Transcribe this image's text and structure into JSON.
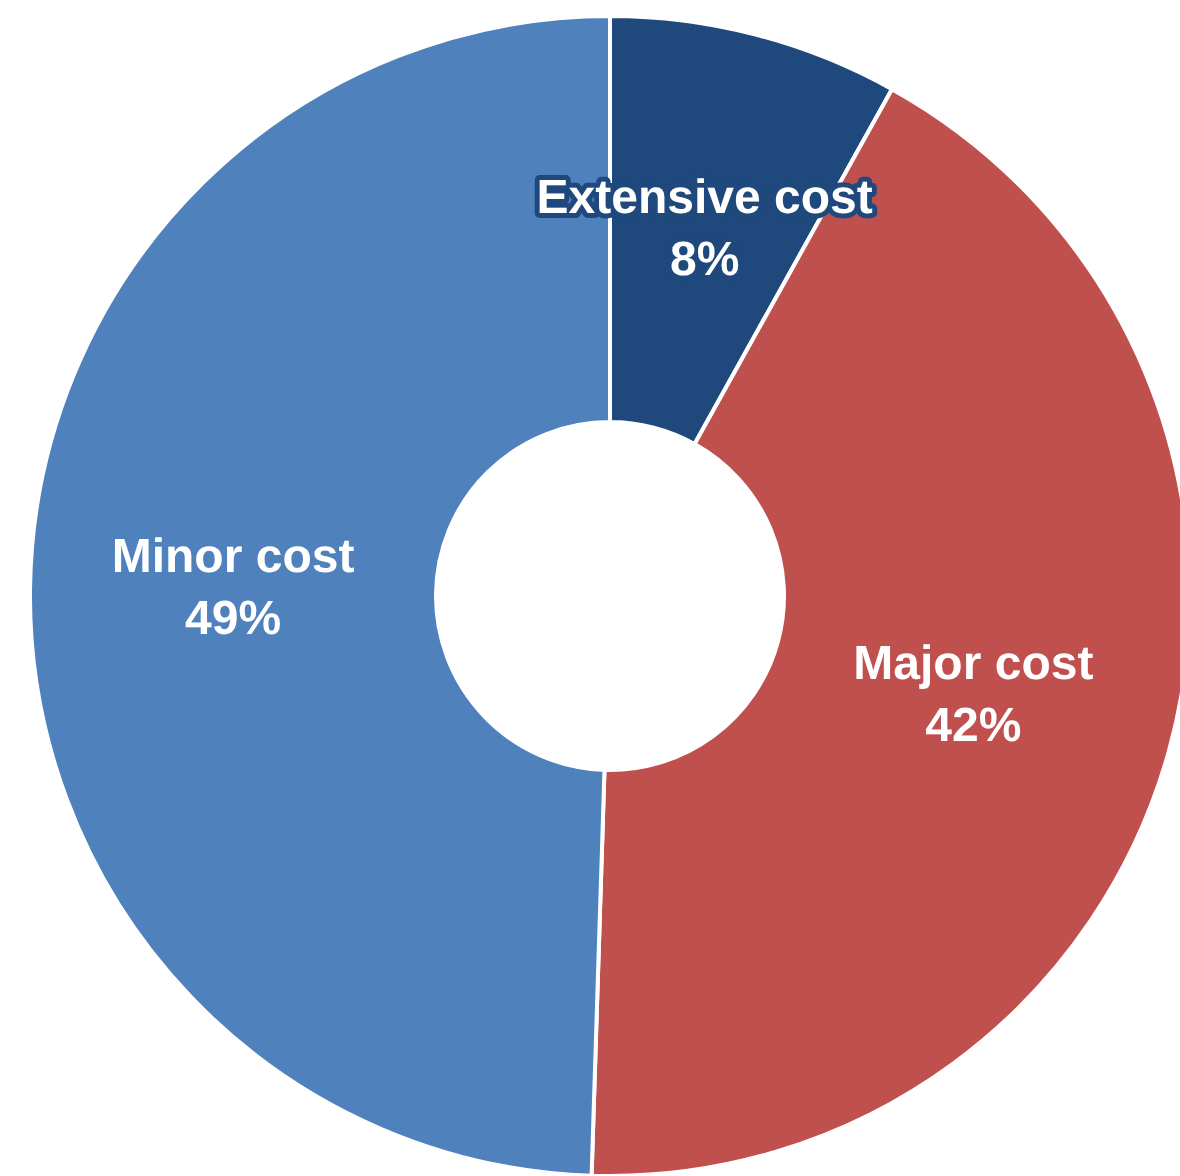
{
  "chart_data": {
    "type": "donut",
    "categories": [
      "Extensive cost",
      "Major cost",
      "Minor cost"
    ],
    "values": [
      8,
      42,
      49
    ],
    "colors": [
      "#1f497d",
      "#c0504d",
      "#4f81bd"
    ],
    "value_labels": [
      "8%",
      "42%",
      "49%"
    ]
  }
}
